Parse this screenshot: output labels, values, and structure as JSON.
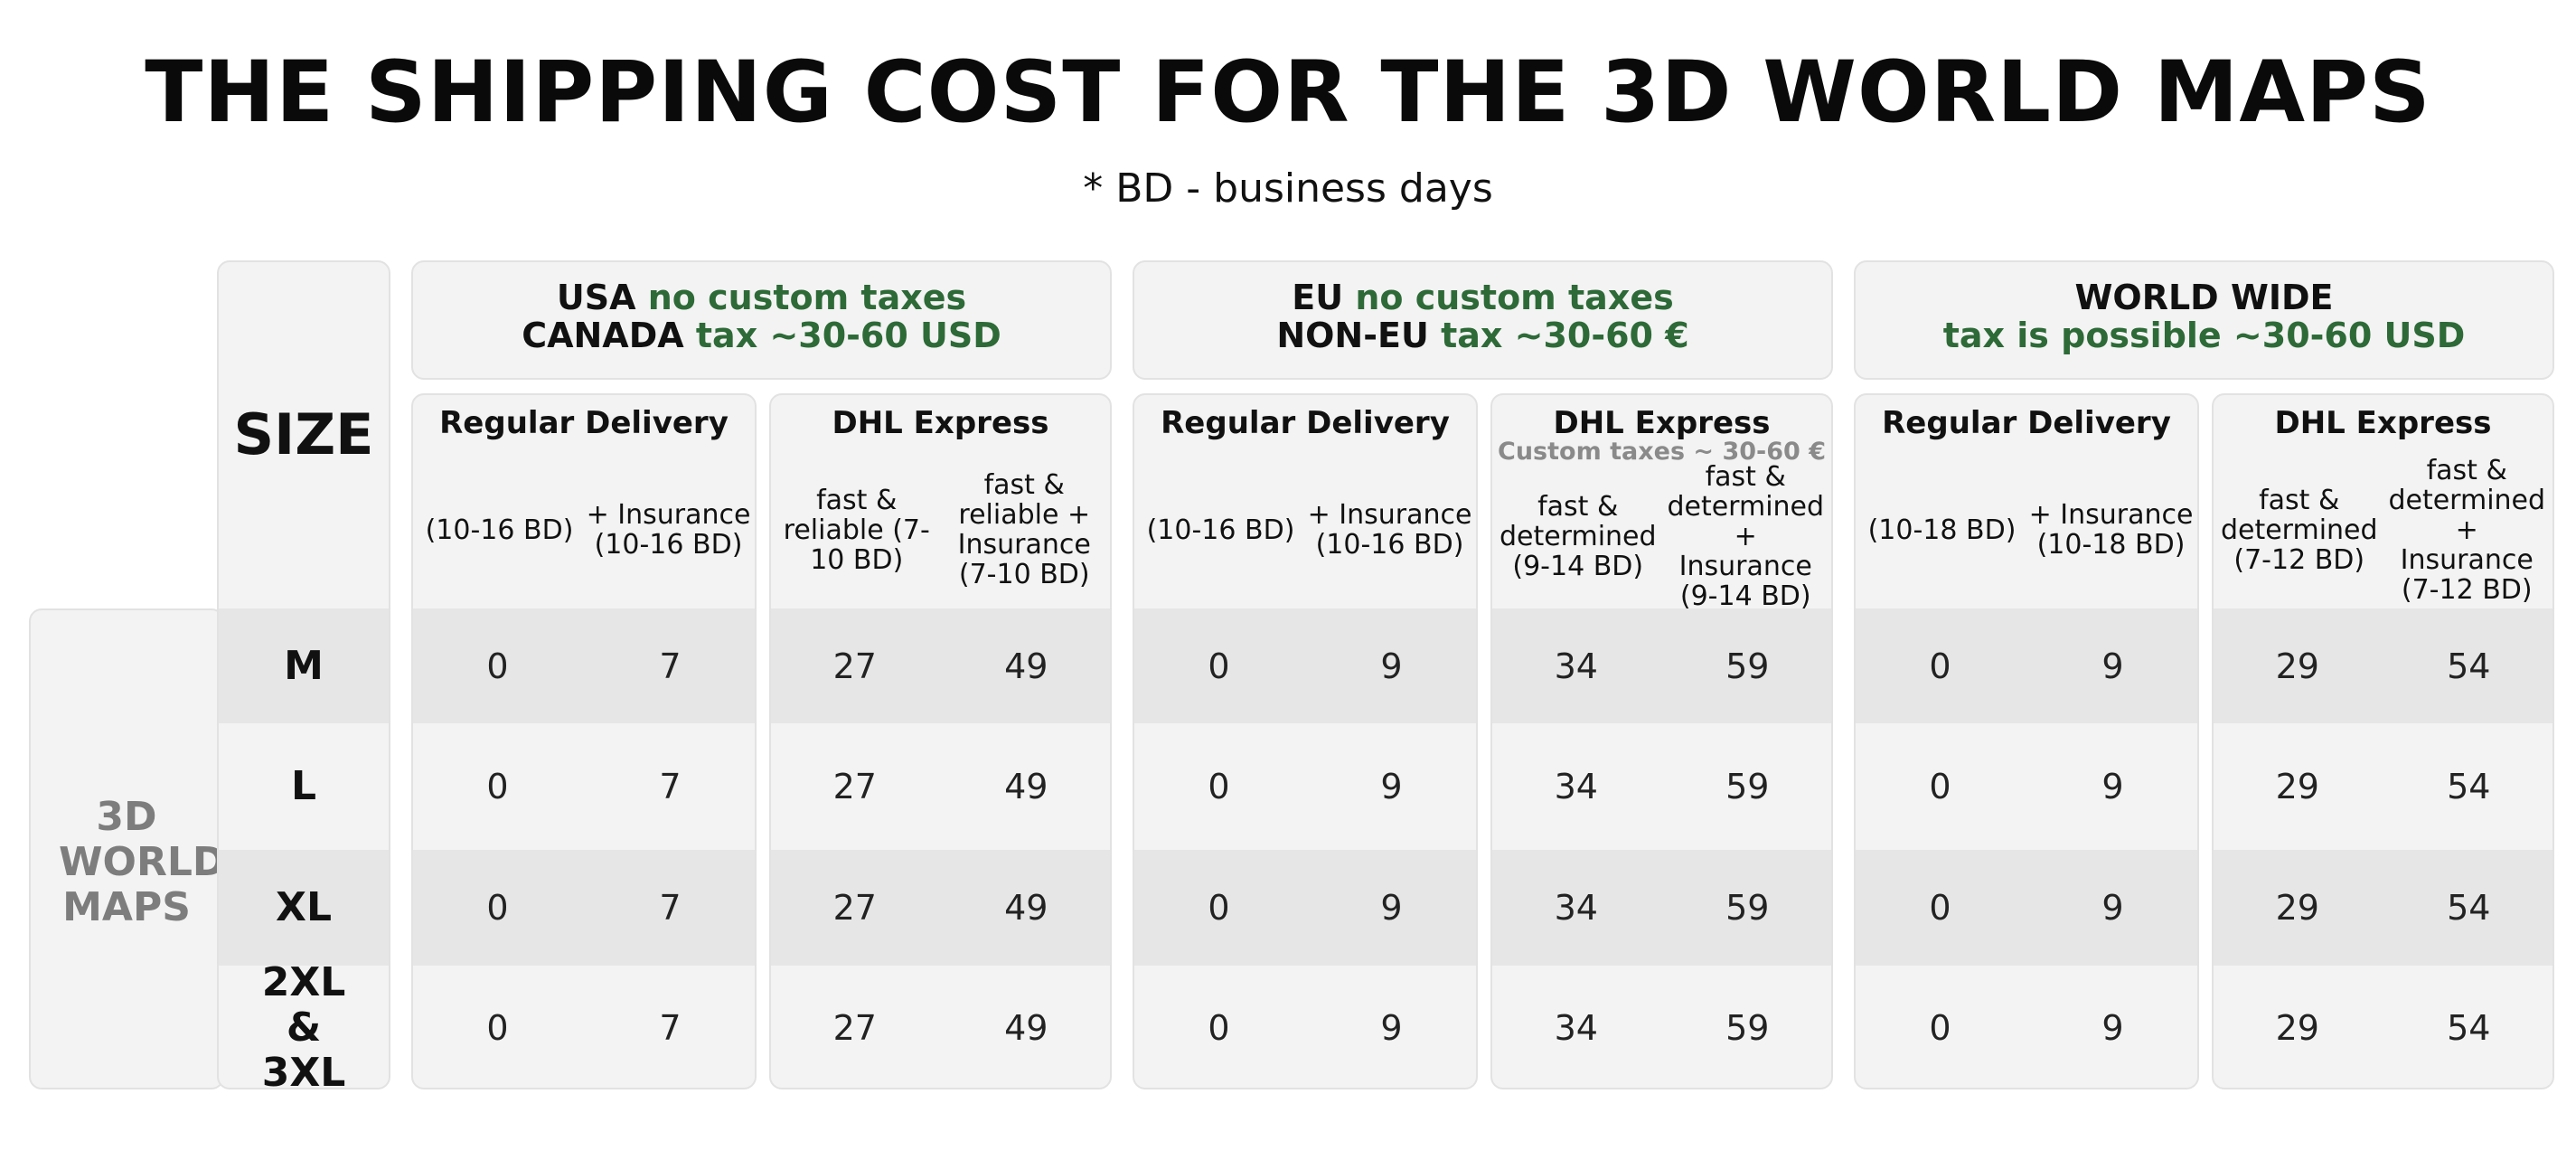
{
  "title": "THE SHIPPING COST FOR THE 3D WORLD MAPS",
  "subtitle": "* BD - business days",
  "size_header": "SIZE",
  "side_label": "3D WORLD MAPS",
  "accent_color": "#2d6a37",
  "regions": [
    {
      "line1_prefix": "USA",
      "line1_green": "no custom taxes",
      "line2_prefix": "CANADA",
      "line2_green": "tax ~30-60 USD",
      "regular": {
        "title": "Regular Delivery",
        "col1": "(10-16 BD)",
        "col2": "+ Insurance (10-16 BD)"
      },
      "express": {
        "title": "DHL Express",
        "note": "",
        "col1": "fast & reliable (7-10 BD)",
        "col2": "fast & reliable + Insurance (7-10 BD)"
      }
    },
    {
      "line1_prefix": "EU",
      "line1_green": "no custom taxes",
      "line2_prefix": "NON-EU",
      "line2_green": "tax ~30-60 €",
      "regular": {
        "title": "Regular Delivery",
        "col1": "(10-16 BD)",
        "col2": "+ Insurance (10-16 BD)"
      },
      "express": {
        "title": "DHL Express",
        "note": "Custom taxes ~ 30-60 €",
        "col1": "fast & determined (9-14 BD)",
        "col2": "fast & determined + Insurance (9-14 BD)"
      }
    },
    {
      "line1_prefix": "WORLD WIDE",
      "line1_green": "",
      "line2_prefix": "",
      "line2_green": "tax is possible ~30-60 USD",
      "regular": {
        "title": "Regular Delivery",
        "col1": "(10-18 BD)",
        "col2": "+ Insurance (10-18 BD)"
      },
      "express": {
        "title": "DHL Express",
        "note": "",
        "col1": "fast & determined (7-12 BD)",
        "col2": "fast & determined + Insurance (7-12 BD)"
      }
    }
  ],
  "rows": [
    {
      "size": "M",
      "values": [
        "0",
        "7",
        "27",
        "49",
        "0",
        "9",
        "34",
        "59",
        "0",
        "9",
        "29",
        "54"
      ]
    },
    {
      "size": "L",
      "values": [
        "0",
        "7",
        "27",
        "49",
        "0",
        "9",
        "34",
        "59",
        "0",
        "9",
        "29",
        "54"
      ]
    },
    {
      "size": "XL",
      "values": [
        "0",
        "7",
        "27",
        "49",
        "0",
        "9",
        "34",
        "59",
        "0",
        "9",
        "29",
        "54"
      ]
    },
    {
      "size": "2XL & 3XL",
      "values": [
        "0",
        "7",
        "27",
        "49",
        "0",
        "9",
        "34",
        "59",
        "0",
        "9",
        "29",
        "54"
      ]
    }
  ]
}
